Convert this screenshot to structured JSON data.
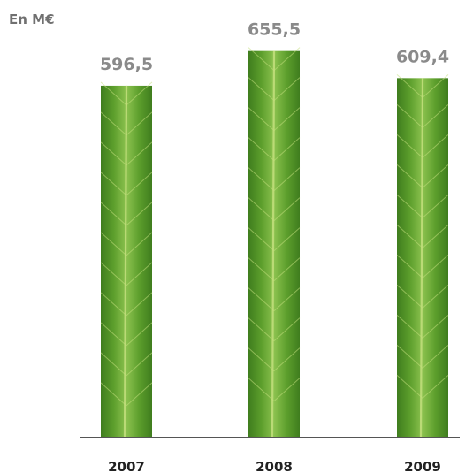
{
  "chart_data": {
    "type": "bar",
    "unit_label": "En M€",
    "categories": [
      "2007",
      "2008",
      "2009"
    ],
    "values": [
      596.5,
      655.5,
      609.4
    ],
    "value_labels": [
      "596,5",
      "655,5",
      "609,4"
    ],
    "ylim": [
      0,
      670
    ],
    "grid": false,
    "legend": "none",
    "bar_fill": "leaf-texture",
    "colors": {
      "leaf_dark": "#3f7d1e",
      "leaf_mid": "#5c9e2c",
      "leaf_light": "#8cc24f",
      "vein": "#c4e07e",
      "baseline": "#555555",
      "value_text": "#8a8a8a",
      "tick_text": "#222222"
    }
  }
}
